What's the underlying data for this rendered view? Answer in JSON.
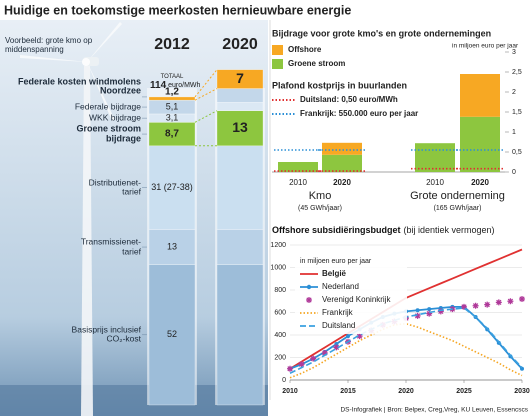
{
  "title": "Huidige en toekomstige meerkosten hernieuwbare energie",
  "footer": "DS-Infografiek | Bron: Belpex, Creg,Vreg, KU Leuven, Essencscs",
  "chart_data": [
    {
      "type": "stacked-bar",
      "note": "Voorbeeld: grote kmo op middenspanning",
      "categories": [
        "2012",
        "2020"
      ],
      "total": {
        "label": "TOTAAL",
        "value": 114,
        "unit": "euro/MWh"
      },
      "series": [
        {
          "name": "Basisprijs inclusief CO₂-kost",
          "color": "#9dbdd9",
          "values": [
            52,
            52
          ],
          "value_labels": [
            "52",
            null
          ]
        },
        {
          "name": "Transmissienet-tarief",
          "color": "#b9d1e7",
          "values": [
            13,
            13
          ],
          "value_labels": [
            "13",
            null
          ]
        },
        {
          "name": "Distributienet-tarief",
          "color": "#cadff0",
          "values": [
            31,
            31
          ],
          "value_labels": [
            "31 (27-38)",
            null
          ]
        },
        {
          "name": "Groene stroom bijdrage",
          "color": "#8dc63f",
          "values": [
            8.7,
            13
          ],
          "value_labels": [
            "8,7",
            "13"
          ],
          "bold": true
        },
        {
          "name": "WKK bijdrage",
          "color": "#dbe8f4",
          "values": [
            3.1,
            3.1
          ],
          "value_labels": [
            "3,1",
            null
          ]
        },
        {
          "name": "Federale bijdrage",
          "color": "#c3d7ea",
          "values": [
            5.1,
            5.1
          ],
          "value_labels": [
            "5,1",
            null
          ]
        },
        {
          "name": "Federale kosten windmolens Noordzee",
          "color": "#f7a823",
          "values": [
            1.2,
            7
          ],
          "value_labels": [
            "1,2",
            "7"
          ],
          "bold": true
        }
      ]
    },
    {
      "type": "stacked-bar",
      "title": "Bijdrage voor grote kmo's en grote ondernemingen",
      "y_label": "in miljoen euro per jaar",
      "categories": [
        "2010",
        "2020",
        "2010",
        "2020"
      ],
      "groups": [
        {
          "name": "Kmo",
          "subtitle": "(45 GWh/jaar)"
        },
        {
          "name": "Grote onderneming",
          "subtitle": "(165 GWh/jaar)"
        }
      ],
      "series": [
        {
          "name": "Groene stroom",
          "color": "#8dc63f",
          "values": [
            0.25,
            0.43,
            0.72,
            1.38
          ]
        },
        {
          "name": "Offshore",
          "color": "#f7a823",
          "values": [
            0,
            0.3,
            0,
            1.07
          ]
        }
      ],
      "reference_title": "Plafond kostprijs in buurlanden",
      "references": [
        {
          "name": "Duitsland: 0,50 euro/MWh",
          "color": "#e03131",
          "values": [
            0.0225,
            0.0225,
            0.0825,
            0.0825
          ]
        },
        {
          "name": "Frankrijk: 550.000 euro per jaar",
          "color": "#2b8fd6",
          "values": [
            0.55,
            0.55,
            0.55,
            0.55
          ]
        }
      ],
      "ylim": [
        0,
        3
      ],
      "yticks": [
        0,
        {
          "value": 0.5,
          "label": "0,5"
        },
        1,
        {
          "value": 1.5,
          "label": "1,5"
        },
        2,
        {
          "value": 2.5,
          "label": "2,5"
        },
        3
      ]
    },
    {
      "type": "line",
      "title": "Offshore subsidiëringsbudget",
      "subtitle": "(bij identiek vermogen)",
      "y_label": "in miljoen euro per jaar",
      "x": [
        2010,
        2011,
        2012,
        2013,
        2014,
        2015,
        2016,
        2017,
        2018,
        2019,
        2020,
        2021,
        2022,
        2023,
        2024,
        2025,
        2026,
        2027,
        2028,
        2029,
        2030
      ],
      "series": [
        {
          "name": "België",
          "color": "#e03131",
          "style": "solid",
          "marker": "none",
          "bold": true,
          "values": [
            100,
            163,
            226,
            289,
            352,
            415,
            478,
            541,
            604,
            667,
            730,
            773,
            816,
            859,
            902,
            945,
            988,
            1031,
            1074,
            1117,
            1160
          ]
        },
        {
          "name": "Nederland",
          "color": "#2b8fd6",
          "style": "solid",
          "marker": "dot",
          "values": [
            100,
            140,
            190,
            250,
            320,
            390,
            450,
            510,
            560,
            590,
            610,
            620,
            630,
            640,
            650,
            650,
            560,
            450,
            330,
            210,
            100
          ]
        },
        {
          "name": "Verenigd Koninkrijk",
          "color": "#b03a9a",
          "style": "none",
          "marker": "star",
          "values": [
            100,
            140,
            190,
            240,
            290,
            340,
            390,
            440,
            490,
            520,
            550,
            570,
            590,
            610,
            630,
            650,
            660,
            670,
            690,
            700,
            720
          ]
        },
        {
          "name": "Frankrijk",
          "color": "#f5a623",
          "style": "dotted",
          "marker": "none",
          "values": [
            20,
            60,
            110,
            170,
            230,
            290,
            350,
            400,
            450,
            490,
            500,
            470,
            430,
            390,
            350,
            300,
            250,
            200,
            150,
            90,
            40
          ]
        },
        {
          "name": "Duitsland",
          "color": "#3aa0e0",
          "style": "dashed",
          "marker": "none",
          "values": [
            60,
            110,
            160,
            220,
            280,
            340,
            400,
            450,
            500,
            530,
            560,
            580,
            600,
            620,
            630,
            640,
            560,
            460,
            340,
            220,
            110
          ]
        }
      ],
      "xlim": [
        2010,
        2030
      ],
      "xticks": [
        2010,
        2015,
        2020,
        2025,
        2030
      ],
      "ylim": [
        0,
        1200
      ],
      "yticks": [
        0,
        200,
        400,
        600,
        800,
        1000,
        1200
      ]
    }
  ]
}
